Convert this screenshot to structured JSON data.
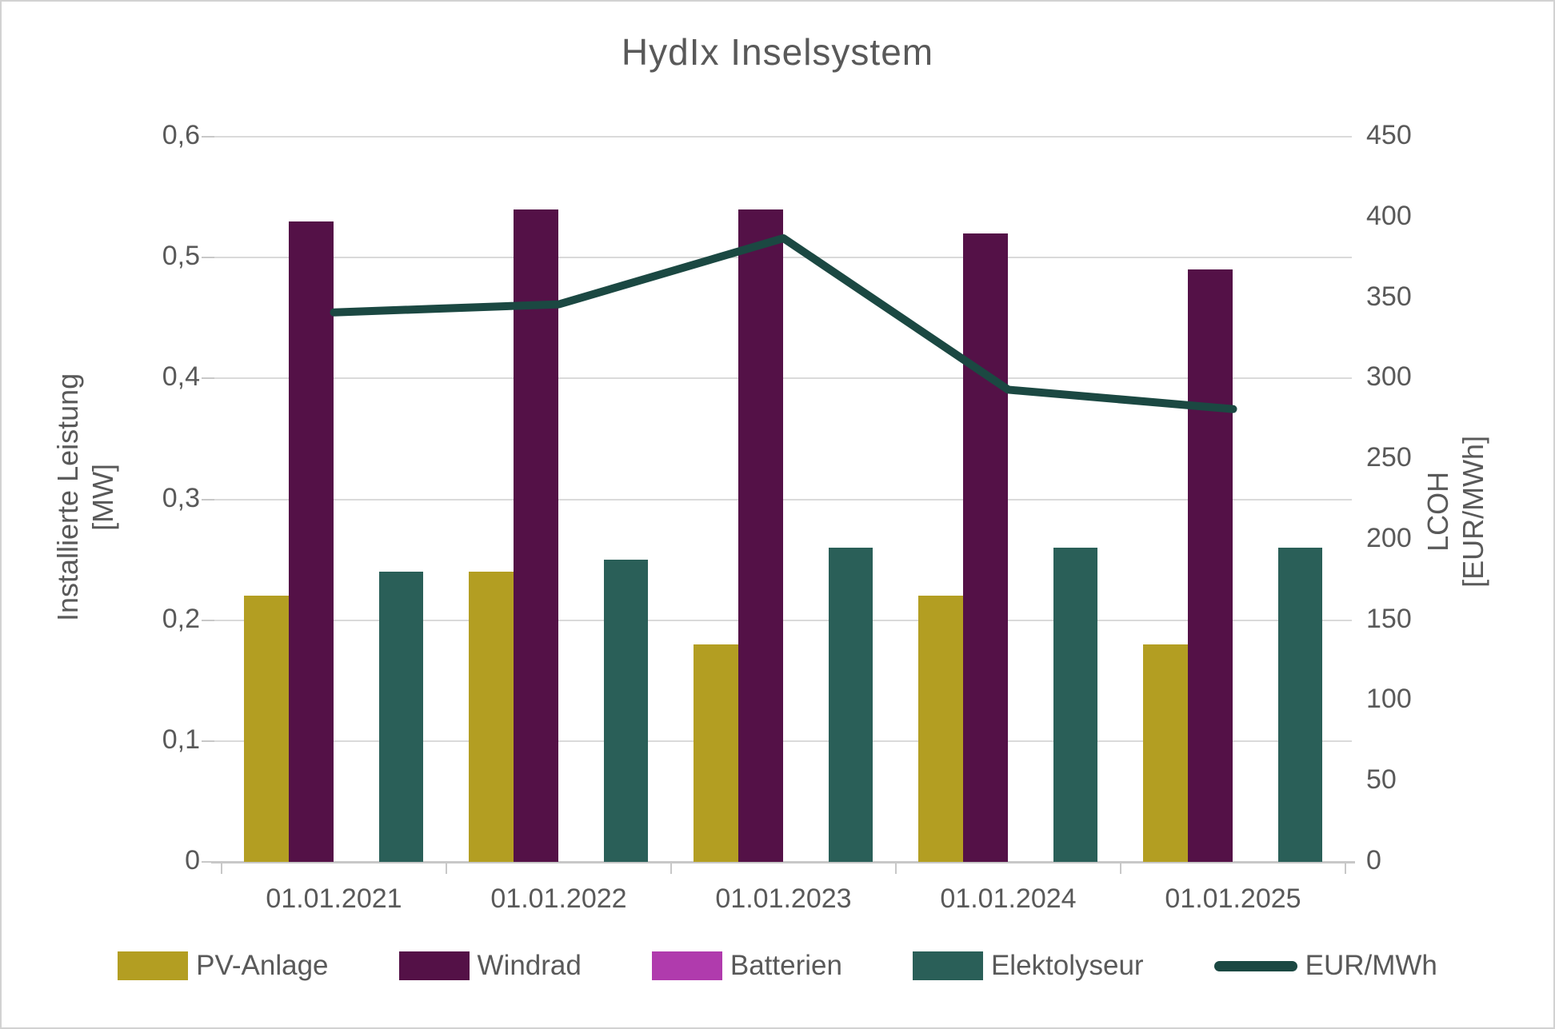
{
  "chart_data": {
    "type": "combo-bar-line",
    "title": "HydIx Inselsystem",
    "categories": [
      "01.01.2021",
      "01.01.2022",
      "01.01.2023",
      "01.01.2024",
      "01.01.2025"
    ],
    "bar_series": [
      {
        "name": "PV-Anlage",
        "color": "#b39e22",
        "axis": "left",
        "values": [
          0.22,
          0.24,
          0.18,
          0.22,
          0.18
        ]
      },
      {
        "name": "Windrad",
        "color": "#541147",
        "axis": "left",
        "values": [
          0.53,
          0.54,
          0.54,
          0.52,
          0.49
        ]
      },
      {
        "name": "Batterien",
        "color": "#b03bad",
        "axis": "left",
        "values": [
          0,
          0,
          0,
          0,
          0
        ]
      },
      {
        "name": "Elektolyseur",
        "color": "#2a5f58",
        "axis": "left",
        "values": [
          0.24,
          0.25,
          0.26,
          0.26,
          0.26
        ]
      }
    ],
    "line_series": [
      {
        "name": "EUR/MWh",
        "color": "#1b4842",
        "axis": "right",
        "values": [
          341,
          346,
          387,
          293,
          281
        ]
      }
    ],
    "left_axis": {
      "title_lines": [
        "Installierte Leistung",
        "[MW]"
      ],
      "min": 0,
      "max": 0.6,
      "step": 0.1,
      "tick_labels": [
        "0",
        "0,1",
        "0,2",
        "0,3",
        "0,4",
        "0,5",
        "0,6"
      ]
    },
    "right_axis": {
      "title_lines": [
        "LCOH",
        "[EUR/MWh]"
      ],
      "min": 0,
      "max": 450,
      "step": 50,
      "tick_labels": [
        "0",
        "50",
        "100",
        "150",
        "200",
        "250",
        "300",
        "350",
        "400",
        "450"
      ]
    },
    "grid": true,
    "legend_position": "bottom",
    "text_color": "#595959",
    "gridline_color": "#dadada"
  }
}
